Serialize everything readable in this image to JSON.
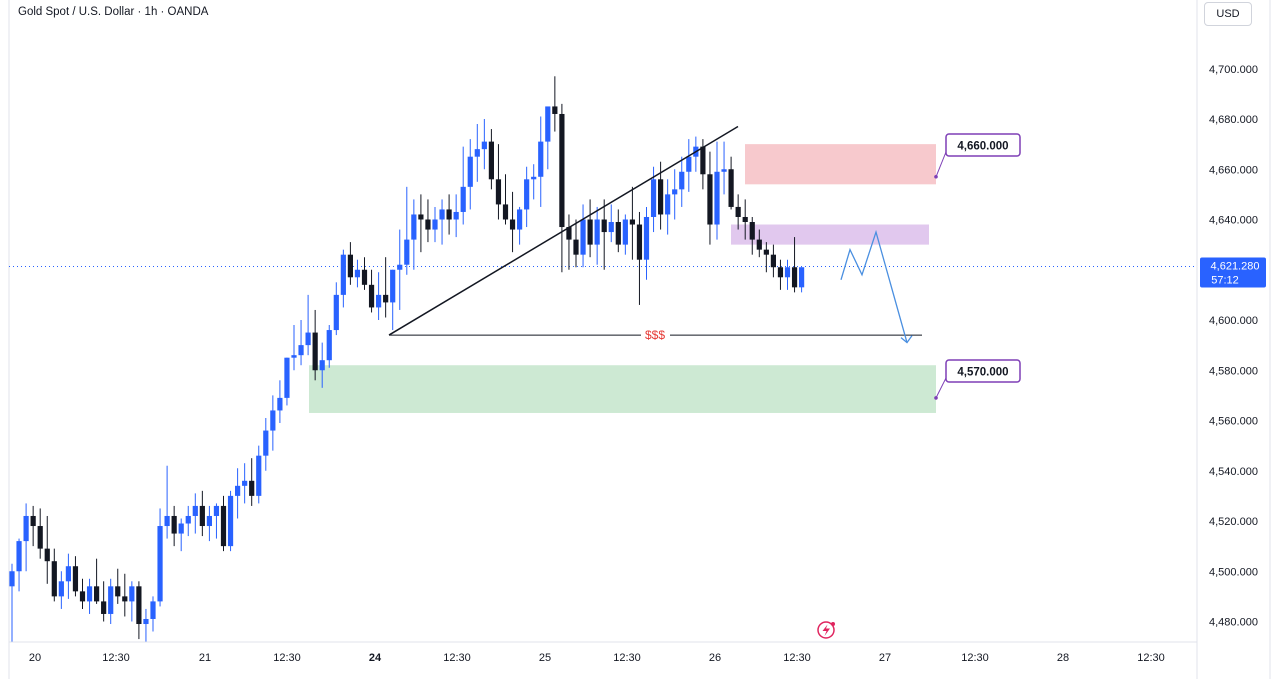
{
  "header": {
    "symbol_title": "Gold Spot / U.S. Dollar · 1h · OANDA",
    "currency_button": "USD"
  },
  "price_scale": {
    "ticks": [
      "4,700.000",
      "4,680.000",
      "4,660.000",
      "4,640.000",
      "4,600.000",
      "4,580.000",
      "4,560.000",
      "4,540.000",
      "4,520.000",
      "4,500.000",
      "4,480.000"
    ],
    "current_price": "4,621.280",
    "countdown": "57:12"
  },
  "time_axis": {
    "labels": [
      "20",
      "12:30",
      "21",
      "12:30",
      "24",
      "12:30",
      "25",
      "12:30",
      "26",
      "12:30",
      "27",
      "12:30",
      "28",
      "12:30"
    ]
  },
  "annotations": {
    "resistance_label": "4,660.000",
    "support_label": "4,570.000",
    "liquidity_label": "$$$"
  },
  "colors": {
    "up_candle": "#2962ff",
    "down_candle": "#131722",
    "resistance_zone": "#f7c9cd",
    "pivot_zone": "#e1c8ee",
    "support_zone": "#cde9d3",
    "label_border": "#7e3fb6",
    "projection_line": "#4a8fe0",
    "current_price_tag": "#2962ff"
  },
  "chart_data": {
    "type": "candlestick",
    "symbol": "Gold Spot / U.S. Dollar",
    "timeframe": "1h",
    "source": "OANDA",
    "ylim": [
      4472,
      4712
    ],
    "y_ticks": [
      4480,
      4500,
      4520,
      4540,
      4560,
      4580,
      4600,
      4620,
      4640,
      4660,
      4680,
      4700
    ],
    "current_price": 4621.28,
    "x_tick_labels": [
      "20",
      "12:30",
      "21",
      "12:30",
      "24",
      "12:30",
      "25",
      "12:30",
      "26",
      "12:30",
      "27",
      "12:30",
      "28",
      "12:30"
    ],
    "ohlc": [
      [
        4494,
        4503,
        4472,
        4500
      ],
      [
        4500,
        4513,
        4492,
        4512
      ],
      [
        4512,
        4527,
        4500,
        4522
      ],
      [
        4522,
        4526,
        4510,
        4518
      ],
      [
        4518,
        4525,
        4505,
        4509
      ],
      [
        4509,
        4522,
        4495,
        4504
      ],
      [
        4504,
        4509,
        4488,
        4490
      ],
      [
        4490,
        4500,
        4485,
        4496
      ],
      [
        4496,
        4507,
        4489,
        4502
      ],
      [
        4502,
        4506,
        4490,
        4492
      ],
      [
        4492,
        4497,
        4485,
        4488
      ],
      [
        4488,
        4497,
        4483,
        4494
      ],
      [
        4494,
        4505,
        4487,
        4488
      ],
      [
        4488,
        4496,
        4480,
        4483
      ],
      [
        4483,
        4497,
        4479,
        4494
      ],
      [
        4494,
        4501,
        4487,
        4490
      ],
      [
        4490,
        4499,
        4482,
        4488
      ],
      [
        4488,
        4496,
        4480,
        4494
      ],
      [
        4494,
        4496,
        4473,
        4479
      ],
      [
        4479,
        4485,
        4472,
        4481
      ],
      [
        4481,
        4490,
        4476,
        4488
      ],
      [
        4488,
        4525,
        4486,
        4518
      ],
      [
        4518,
        4542,
        4513,
        4522
      ],
      [
        4522,
        4526,
        4510,
        4515
      ],
      [
        4515,
        4521,
        4508,
        4519
      ],
      [
        4519,
        4526,
        4514,
        4522
      ],
      [
        4522,
        4531,
        4515,
        4526
      ],
      [
        4526,
        4532,
        4514,
        4518
      ],
      [
        4518,
        4526,
        4512,
        4522
      ],
      [
        4522,
        4527,
        4513,
        4526
      ],
      [
        4526,
        4530,
        4508,
        4510
      ],
      [
        4510,
        4532,
        4508,
        4530
      ],
      [
        4530,
        4541,
        4521,
        4534
      ],
      [
        4534,
        4543,
        4527,
        4536
      ],
      [
        4536,
        4545,
        4526,
        4530
      ],
      [
        4530,
        4550,
        4527,
        4546
      ],
      [
        4546,
        4561,
        4540,
        4556
      ],
      [
        4556,
        4570,
        4548,
        4564
      ],
      [
        4564,
        4576,
        4559,
        4569
      ],
      [
        4569,
        4585,
        4566,
        4585
      ],
      [
        4585,
        4598,
        4580,
        4586
      ],
      [
        4586,
        4600,
        4582,
        4590
      ],
      [
        4590,
        4610,
        4586,
        4595
      ],
      [
        4595,
        4604,
        4576,
        4580
      ],
      [
        4580,
        4591,
        4573,
        4584
      ],
      [
        4584,
        4598,
        4581,
        4596
      ],
      [
        4596,
        4615,
        4594,
        4610
      ],
      [
        4610,
        4628,
        4605,
        4626
      ],
      [
        4626,
        4631,
        4614,
        4617
      ],
      [
        4617,
        4624,
        4613,
        4620
      ],
      [
        4620,
        4625,
        4612,
        4614
      ],
      [
        4614,
        4620,
        4603,
        4605
      ],
      [
        4605,
        4619,
        4600,
        4610
      ],
      [
        4610,
        4625,
        4601,
        4607
      ],
      [
        4607,
        4620,
        4596,
        4620
      ],
      [
        4620,
        4636,
        4604,
        4622
      ],
      [
        4622,
        4653,
        4618,
        4632
      ],
      [
        4632,
        4648,
        4620,
        4642
      ],
      [
        4642,
        4650,
        4627,
        4640
      ],
      [
        4640,
        4648,
        4631,
        4636
      ],
      [
        4636,
        4645,
        4631,
        4640
      ],
      [
        4640,
        4648,
        4630,
        4644
      ],
      [
        4644,
        4650,
        4634,
        4640
      ],
      [
        4640,
        4650,
        4633,
        4643
      ],
      [
        4643,
        4669,
        4638,
        4653
      ],
      [
        4653,
        4672,
        4644,
        4665
      ],
      [
        4665,
        4678,
        4655,
        4668
      ],
      [
        4668,
        4680,
        4660,
        4671
      ],
      [
        4671,
        4676,
        4652,
        4656
      ],
      [
        4656,
        4670,
        4640,
        4646
      ],
      [
        4646,
        4658,
        4638,
        4640
      ],
      [
        4640,
        4651,
        4627,
        4636
      ],
      [
        4636,
        4645,
        4630,
        4644
      ],
      [
        4644,
        4661,
        4637,
        4656
      ],
      [
        4656,
        4662,
        4648,
        4657
      ],
      [
        4657,
        4681,
        4645,
        4671
      ],
      [
        4671,
        4683,
        4660,
        4685
      ],
      [
        4685,
        4697,
        4675,
        4682
      ],
      [
        4682,
        4686,
        4619,
        4637
      ],
      [
        4637,
        4642,
        4620,
        4632
      ],
      [
        4632,
        4640,
        4621,
        4626
      ],
      [
        4626,
        4646,
        4621,
        4640
      ],
      [
        4640,
        4648,
        4625,
        4630
      ],
      [
        4630,
        4645,
        4622,
        4640
      ],
      [
        4640,
        4648,
        4620,
        4635
      ],
      [
        4635,
        4646,
        4631,
        4639
      ],
      [
        4639,
        4644,
        4627,
        4630
      ],
      [
        4630,
        4642,
        4626,
        4640
      ],
      [
        4640,
        4653,
        4624,
        4638
      ],
      [
        4638,
        4643,
        4606,
        4624
      ],
      [
        4624,
        4645,
        4616,
        4641
      ],
      [
        4641,
        4661,
        4635,
        4656
      ],
      [
        4656,
        4663,
        4636,
        4642
      ],
      [
        4642,
        4656,
        4634,
        4650
      ],
      [
        4650,
        4660,
        4640,
        4652
      ],
      [
        4652,
        4665,
        4645,
        4659
      ],
      [
        4659,
        4672,
        4651,
        4665
      ],
      [
        4665,
        4673,
        4659,
        4669
      ],
      [
        4669,
        4672,
        4652,
        4658
      ],
      [
        4658,
        4667,
        4630,
        4638
      ],
      [
        4638,
        4671,
        4632,
        4659
      ],
      [
        4659,
        4671,
        4650,
        4660
      ],
      [
        4660,
        4665,
        4644,
        4645
      ],
      [
        4645,
        4650,
        4636,
        4641
      ],
      [
        4641,
        4648,
        4632,
        4639
      ],
      [
        4639,
        4641,
        4626,
        4632
      ],
      [
        4632,
        4636,
        4625,
        4628
      ],
      [
        4628,
        4631,
        4619,
        4626
      ],
      [
        4626,
        4630,
        4617,
        4621
      ],
      [
        4621,
        4624,
        4612,
        4617
      ],
      [
        4617,
        4624,
        4612,
        4621
      ],
      [
        4621,
        4633,
        4611,
        4613
      ],
      [
        4613,
        4621,
        4611,
        4621
      ]
    ],
    "zones": [
      {
        "label": "4,660.000",
        "from": 4654,
        "to": 4670
      },
      {
        "label": "",
        "from": 4630,
        "to": 4638
      },
      {
        "label": "4,570.000",
        "from": 4563,
        "to": 4582
      }
    ],
    "trendline": {
      "from": [
        4594
      ],
      "to": [
        4677
      ]
    },
    "liquidity_level": {
      "label": "$$$",
      "value": 4594
    },
    "projection_path": [
      4616,
      4628,
      4618,
      4635,
      4591
    ]
  }
}
